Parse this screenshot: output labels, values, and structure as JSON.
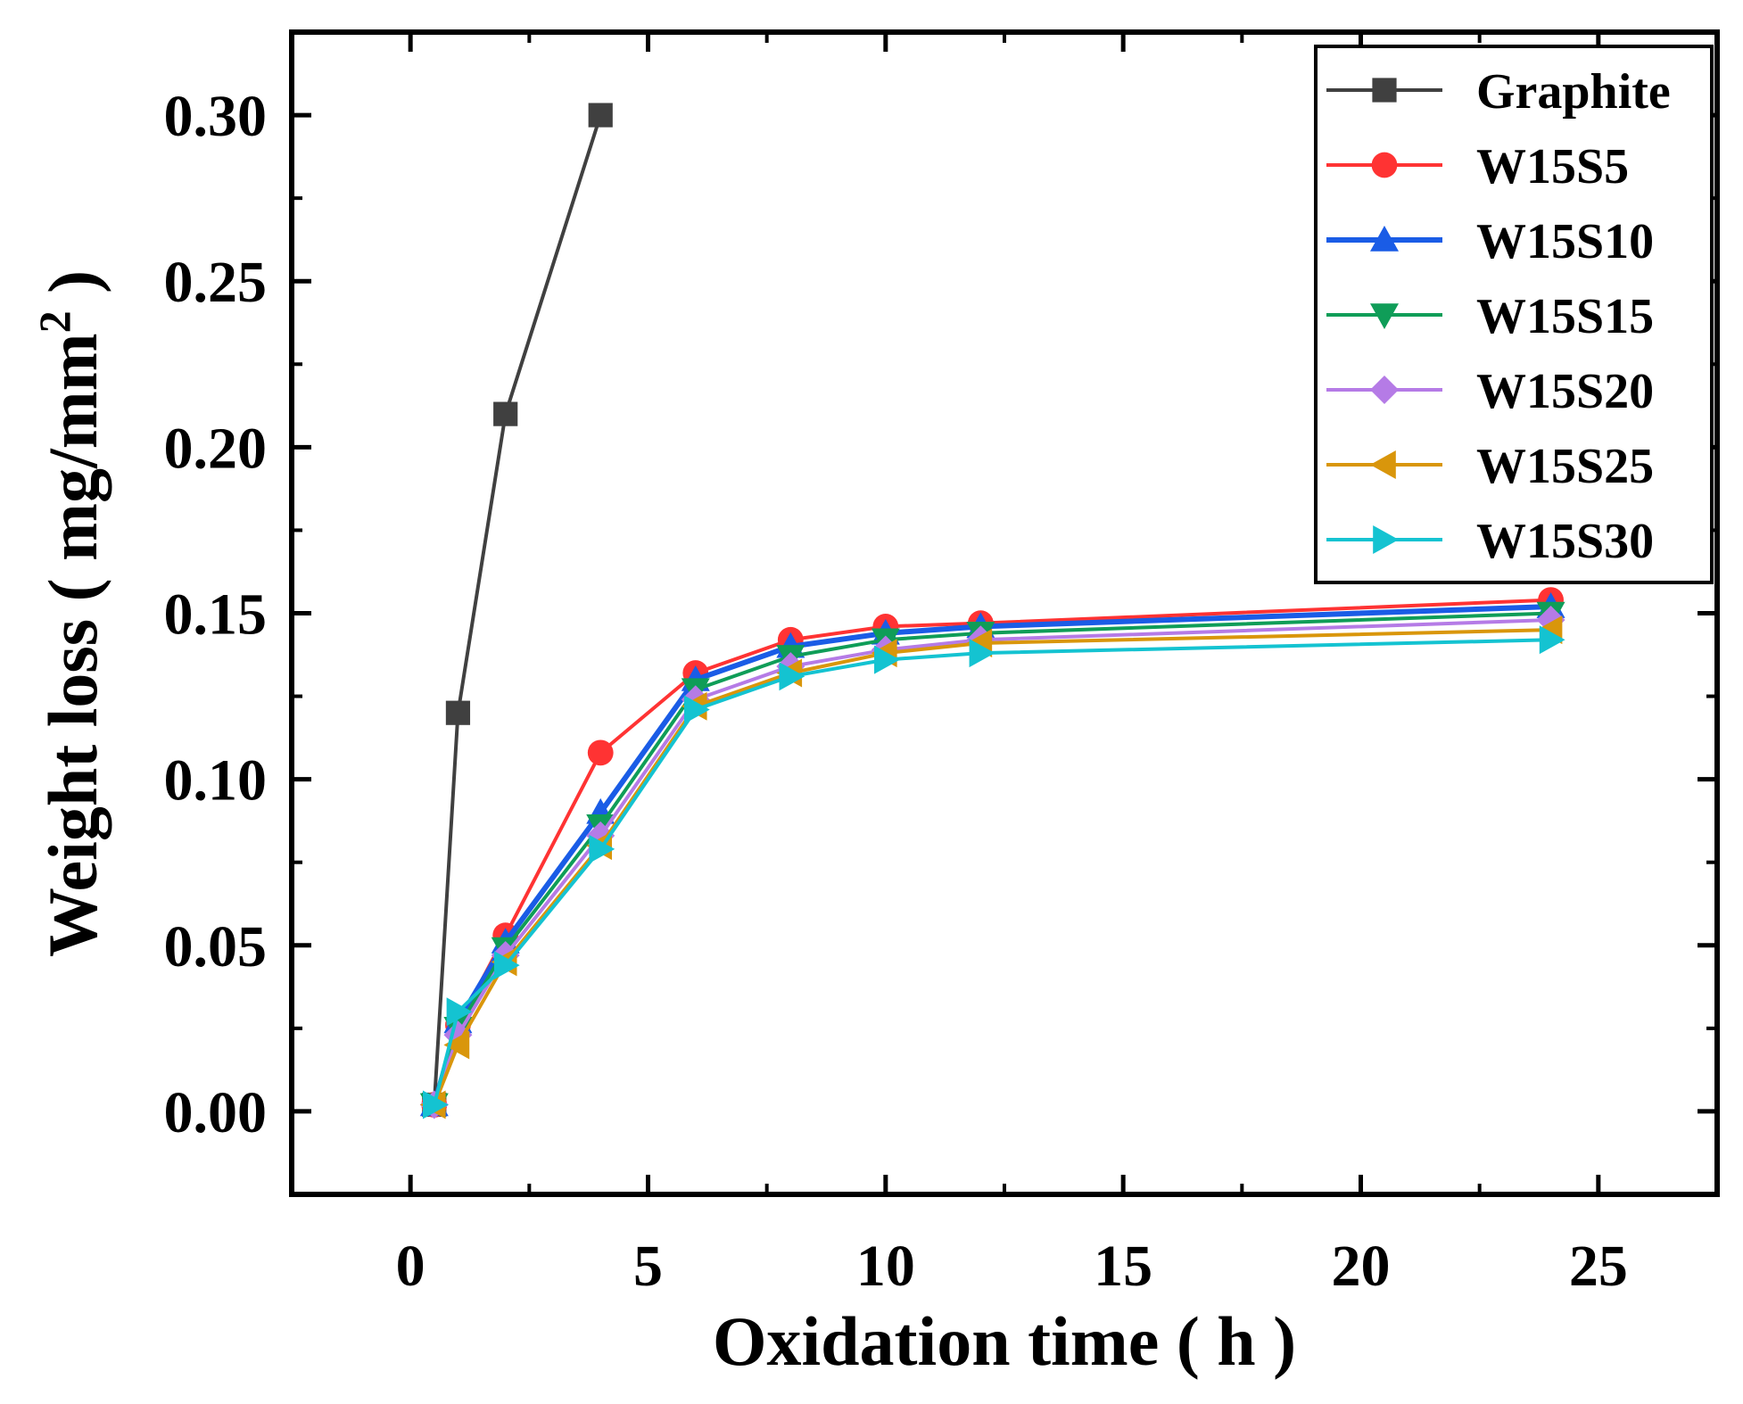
{
  "chart_data": {
    "type": "line",
    "xlabel": "Oxidation time ( h )",
    "ylabel": "Weight loss ( mg/mm",
    "ylabel_sup": "2",
    "ylabel_close": " )",
    "xlim": [
      -2.5,
      27.5
    ],
    "ylim": [
      -0.025,
      0.325
    ],
    "xticks": [
      0,
      5,
      10,
      15,
      20,
      25
    ],
    "xtick_labels": [
      "0",
      "5",
      "10",
      "15",
      "20",
      "25"
    ],
    "yticks": [
      0.0,
      0.05,
      0.1,
      0.15,
      0.2,
      0.25,
      0.3
    ],
    "ytick_labels": [
      "0.00",
      "0.05",
      "0.10",
      "0.15",
      "0.20",
      "0.25",
      "0.30"
    ],
    "legend_position": "top-right",
    "series": [
      {
        "name": "Graphite",
        "color": "#404040",
        "marker": "square",
        "x": [
          0.5,
          1,
          2,
          4
        ],
        "y": [
          0.002,
          0.12,
          0.21,
          0.3
        ]
      },
      {
        "name": "W15S5",
        "color": "#ff3333",
        "marker": "circle",
        "x": [
          0.5,
          1,
          2,
          4,
          6,
          8,
          10,
          12,
          24
        ],
        "y": [
          0.002,
          0.026,
          0.053,
          0.108,
          0.132,
          0.142,
          0.146,
          0.147,
          0.154
        ]
      },
      {
        "name": "W15S10",
        "color": "#1a5ce6",
        "marker": "triangle-up",
        "x": [
          0.5,
          1,
          2,
          4,
          6,
          8,
          10,
          12,
          24
        ],
        "y": [
          0.002,
          0.027,
          0.051,
          0.09,
          0.13,
          0.14,
          0.144,
          0.146,
          0.152
        ]
      },
      {
        "name": "W15S15",
        "color": "#0f9d58",
        "marker": "triangle-down",
        "x": [
          0.5,
          1,
          2,
          4,
          6,
          8,
          10,
          12,
          24
        ],
        "y": [
          0.002,
          0.025,
          0.049,
          0.086,
          0.127,
          0.137,
          0.142,
          0.144,
          0.15
        ]
      },
      {
        "name": "W15S20",
        "color": "#b57be6",
        "marker": "diamond",
        "x": [
          0.5,
          1,
          2,
          4,
          6,
          8,
          10,
          12,
          24
        ],
        "y": [
          0.002,
          0.023,
          0.047,
          0.083,
          0.124,
          0.134,
          0.139,
          0.142,
          0.148
        ]
      },
      {
        "name": "W15S25",
        "color": "#d9960b",
        "marker": "triangle-left",
        "x": [
          0.5,
          1,
          2,
          4,
          6,
          8,
          10,
          12,
          24
        ],
        "y": [
          0.002,
          0.02,
          0.045,
          0.08,
          0.122,
          0.132,
          0.138,
          0.141,
          0.145
        ]
      },
      {
        "name": "W15S30",
        "color": "#14c3d1",
        "marker": "triangle-right",
        "x": [
          0.5,
          1,
          2,
          4,
          6,
          8,
          10,
          12,
          24
        ],
        "y": [
          0.002,
          0.03,
          0.044,
          0.079,
          0.121,
          0.131,
          0.136,
          0.138,
          0.142
        ]
      }
    ]
  }
}
